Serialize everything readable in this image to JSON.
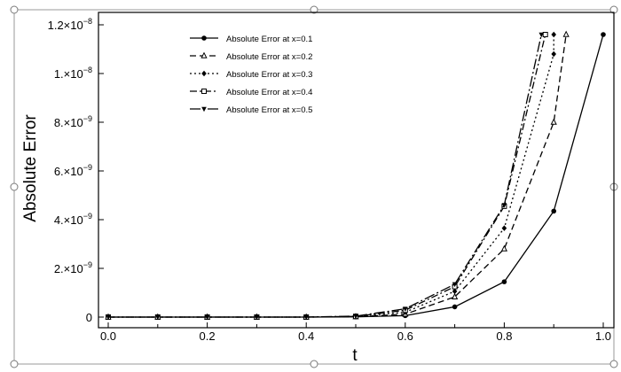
{
  "chart_data": {
    "type": "line",
    "xlabel": "t",
    "ylabel": "Absolute Error",
    "xlim": [
      0,
      1
    ],
    "ylim": [
      0,
      1.2e-08
    ],
    "x_ticks": [
      "0.0",
      "0.2",
      "0.4",
      "0.6",
      "0.8",
      "1.0"
    ],
    "y_ticks": [
      {
        "mantissa": "0",
        "exp": ""
      },
      {
        "mantissa": "2.×10",
        "exp": "−9"
      },
      {
        "mantissa": "4.×10",
        "exp": "−9"
      },
      {
        "mantissa": "6.×10",
        "exp": "−9"
      },
      {
        "mantissa": "8.×10",
        "exp": "−9"
      },
      {
        "mantissa": "1.×10",
        "exp": "−8"
      },
      {
        "mantissa": "1.2×10",
        "exp": "−8"
      }
    ],
    "legend_position": "top-left",
    "grid": false,
    "series": [
      {
        "name": "Absolute Error at x=0.1",
        "marker": "circle",
        "dash": "",
        "x": [
          0,
          0.1,
          0.2,
          0.3,
          0.4,
          0.5,
          0.6,
          0.7,
          0.8,
          0.9,
          1.0
        ],
        "y": [
          0,
          0,
          0,
          0,
          0,
          1e-11,
          6e-11,
          4.2e-10,
          1.45e-09,
          4.35e-09,
          1.16e-08
        ]
      },
      {
        "name": "Absolute Error at x=0.2",
        "marker": "triangle",
        "dash": "7,4",
        "x": [
          0,
          0.1,
          0.2,
          0.3,
          0.4,
          0.5,
          0.6,
          0.7,
          0.8,
          0.9,
          0.925
        ],
        "y": [
          0,
          0,
          0,
          0,
          0,
          1.5e-11,
          1.2e-10,
          8.3e-10,
          2.8e-09,
          8e-09,
          1.16e-08
        ]
      },
      {
        "name": "Absolute Error at x=0.3",
        "marker": "diamond",
        "dash": "2,3",
        "x": [
          0,
          0.1,
          0.2,
          0.3,
          0.4,
          0.5,
          0.6,
          0.7,
          0.8,
          0.9,
          0.9
        ],
        "y": [
          0,
          0,
          0,
          0,
          0,
          2e-11,
          2e-10,
          1.06e-09,
          3.65e-09,
          1.08e-08,
          1.16e-08
        ]
      },
      {
        "name": "Absolute Error at x=0.4",
        "marker": "square",
        "dash": "8,3,2,3",
        "x": [
          0,
          0.1,
          0.2,
          0.3,
          0.4,
          0.5,
          0.6,
          0.7,
          0.8,
          0.883
        ],
        "y": [
          0,
          0,
          0,
          0,
          0,
          3e-11,
          2.8e-10,
          1.25e-09,
          4.55e-09,
          1.16e-08
        ]
      },
      {
        "name": "Absolute Error at x=0.5",
        "marker": "triangle-down",
        "dash": "12,3,2,3",
        "x": [
          0,
          0.1,
          0.2,
          0.3,
          0.4,
          0.5,
          0.6,
          0.7,
          0.8,
          0.875
        ],
        "y": [
          0,
          0,
          0,
          0,
          0,
          4e-11,
          3.4e-10,
          1.35e-09,
          4.6e-09,
          1.16e-08
        ]
      }
    ]
  }
}
